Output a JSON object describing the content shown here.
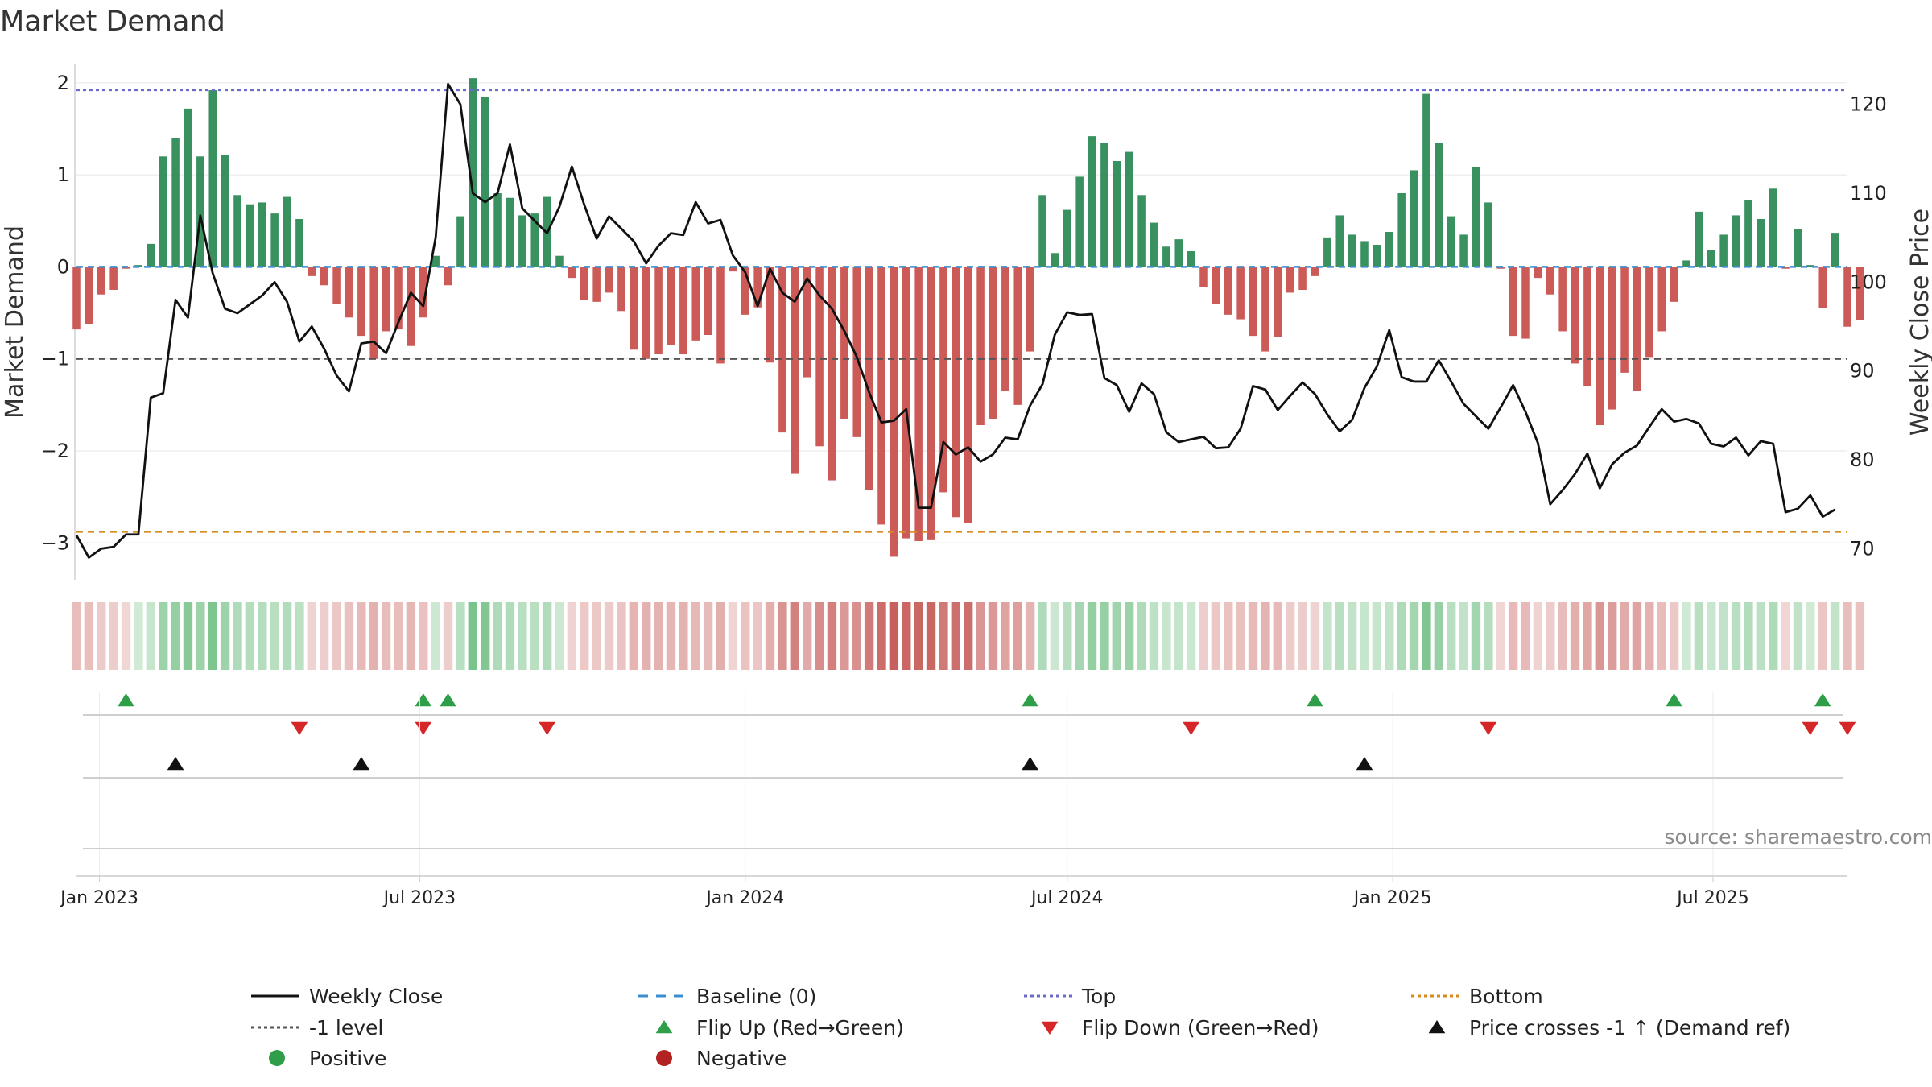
{
  "chart_data": {
    "type": "bar",
    "title": "Market Demand",
    "ylabel_left": "Market Demand",
    "ylabel_right": "Weekly Close Price",
    "source": "source: sharemaestro.com",
    "left_axis": {
      "ylim": [
        -3.4,
        2.2
      ],
      "ticks": [
        2,
        1,
        0,
        -1,
        -2,
        -3
      ],
      "tick_labels": [
        "2",
        "1",
        "0",
        "−1",
        "−2",
        "−3"
      ]
    },
    "right_axis": {
      "ylim": [
        66.5,
        124.5
      ],
      "ticks": [
        120,
        110,
        100,
        90,
        80,
        70
      ],
      "tick_labels": [
        "120",
        "110",
        "100",
        "90",
        "80",
        "70"
      ]
    },
    "x_range": [
      "2022-12-19",
      "2025-09-15"
    ],
    "x_ticks": [
      {
        "date": "2023-01-01",
        "label": "Jan 2023"
      },
      {
        "date": "2023-07-01",
        "label": "Jul 2023"
      },
      {
        "date": "2024-01-01",
        "label": "Jan 2024"
      },
      {
        "date": "2024-07-01",
        "label": "Jul 2024"
      },
      {
        "date": "2025-01-01",
        "label": "Jan 2025"
      },
      {
        "date": "2025-07-01",
        "label": "Jul 2025"
      }
    ],
    "start_date": "2022-12-19",
    "week_step_days": 7,
    "demand": [
      -0.68,
      -0.62,
      -0.3,
      -0.25,
      -0.02,
      0.02,
      0.25,
      1.2,
      1.4,
      1.72,
      1.2,
      1.92,
      1.22,
      0.78,
      0.68,
      0.7,
      0.58,
      0.76,
      0.52,
      -0.1,
      -0.2,
      -0.4,
      -0.55,
      -0.75,
      -1.0,
      -0.7,
      -0.68,
      -0.86,
      -0.55,
      0.12,
      -0.2,
      0.55,
      2.05,
      1.85,
      0.8,
      0.75,
      0.56,
      0.58,
      0.76,
      0.12,
      -0.12,
      -0.36,
      -0.38,
      -0.28,
      -0.48,
      -0.9,
      -1.0,
      -0.95,
      -0.85,
      -0.95,
      -0.8,
      -0.74,
      -1.05,
      -0.05,
      -0.52,
      -0.44,
      -1.04,
      -1.8,
      -2.25,
      -1.2,
      -1.95,
      -2.32,
      -1.65,
      -1.85,
      -2.42,
      -2.8,
      -3.15,
      -2.95,
      -2.98,
      -2.97,
      -2.45,
      -2.72,
      -2.78,
      -1.72,
      -1.65,
      -1.35,
      -1.5,
      -0.92,
      0.78,
      0.15,
      0.62,
      0.98,
      1.42,
      1.35,
      1.15,
      1.25,
      0.78,
      0.48,
      0.22,
      0.3,
      0.17,
      -0.22,
      -0.4,
      -0.52,
      -0.57,
      -0.75,
      -0.92,
      -0.76,
      -0.28,
      -0.25,
      -0.1,
      0.32,
      0.56,
      0.35,
      0.28,
      0.24,
      0.38,
      0.8,
      1.05,
      1.88,
      1.35,
      0.55,
      0.35,
      1.08,
      0.7,
      -0.02,
      -0.75,
      -0.78,
      -0.12,
      -0.3,
      -0.7,
      -1.05,
      -1.3,
      -1.72,
      -1.55,
      -1.15,
      -1.35,
      -0.98,
      -0.7,
      -0.38,
      0.07,
      0.6,
      0.18,
      0.35,
      0.56,
      0.73,
      0.52,
      0.85,
      -0.02,
      0.41,
      0.02,
      -0.45,
      0.37,
      -0.65,
      -0.58
    ],
    "weekly_close": [
      71.5,
      69,
      70,
      70.2,
      71.6,
      71.6,
      87,
      87.5,
      98,
      96,
      107.5,
      101,
      97,
      96.5,
      97.5,
      98.5,
      100,
      97.8,
      93.3,
      95,
      92.5,
      89.5,
      87.7,
      93.1,
      93.3,
      92,
      95.5,
      98.8,
      97.3,
      105,
      122.3,
      120,
      110,
      109,
      110,
      115.5,
      108.3,
      106.9,
      105.5,
      108.5,
      113,
      108.7,
      104.9,
      107.4,
      106,
      104.6,
      102.1,
      104.1,
      105.5,
      105.3,
      109,
      106.6,
      107,
      103,
      101.1,
      97.3,
      101.5,
      98.8,
      97.8,
      100.4,
      98.5,
      97,
      94.5,
      91.6,
      87.6,
      84.2,
      84.4,
      85.7,
      74.6,
      74.6,
      82,
      80.6,
      81.4,
      79.8,
      80.6,
      82.5,
      82.3,
      86.1,
      88.5,
      94.1,
      96.6,
      96.3,
      96.4,
      89.2,
      88.4,
      85.4,
      88.6,
      87.4,
      83.1,
      82,
      82.3,
      82.6,
      81.3,
      81.4,
      83.5,
      88.3,
      87.9,
      85.6,
      87.2,
      88.7,
      87.4,
      85.1,
      83.2,
      84.5,
      88.1,
      90.5,
      94.6,
      89.3,
      88.8,
      88.8,
      91.2,
      88.8,
      86.3,
      84.9,
      83.5,
      85.9,
      88.4,
      85.4,
      81.9,
      75,
      76.6,
      78.4,
      80.7,
      76.8,
      79.5,
      80.8,
      81.6,
      83.7,
      85.7,
      84.3,
      84.6,
      84.1,
      81.8,
      81.5,
      82.5,
      80.5,
      82.1,
      81.8,
      74.1,
      74.5,
      76,
      73.6,
      74.4
    ],
    "reference_lines": [
      {
        "name": "Top",
        "value": 1.92,
        "color": "#6b6bcc",
        "style": "dotted"
      },
      {
        "name": "-1 level",
        "value": -1,
        "color": "#555555",
        "style": "dashed"
      },
      {
        "name": "Bottom",
        "value": -2.88,
        "color": "#d58b1e",
        "style": "dashed"
      },
      {
        "name": "Baseline (0)",
        "value": 0,
        "color": "#3b8ed1",
        "style": "dashed"
      }
    ],
    "flip_up_weeks": [
      4,
      28,
      30,
      77,
      100,
      129,
      141
    ],
    "flip_down_weeks": [
      18,
      28,
      38,
      90,
      114,
      140,
      143
    ],
    "price_cross_weeks": [
      8,
      23,
      77,
      104
    ],
    "colors": {
      "positive": "#2e8b57",
      "negative": "#c9524f",
      "weekly_close": "#111111",
      "flip_up": "#2e9e48",
      "flip_down": "#d62728",
      "price_cross": "#111111",
      "positive_dot": "#2e9e48",
      "negative_dot": "#b22222",
      "grid": "#e6e6e6"
    },
    "legend": [
      {
        "label": "Weekly Close",
        "kind": "line",
        "color": "#111111"
      },
      {
        "label": "Baseline (0)",
        "kind": "dash",
        "color": "#3b8ed1"
      },
      {
        "label": "Top",
        "kind": "dotted",
        "color": "#6b6bcc"
      },
      {
        "label": "Bottom",
        "kind": "dotted",
        "color": "#d58b1e"
      },
      {
        "label": "-1 level",
        "kind": "dotted",
        "color": "#555555"
      },
      {
        "label": "Flip Up (Red→Green)",
        "kind": "tri-up",
        "color": "#2e9e48"
      },
      {
        "label": "Flip Down (Green→Red)",
        "kind": "tri-down",
        "color": "#d62728"
      },
      {
        "label": "Price crosses -1 ↑ (Demand ref)",
        "kind": "tri-up",
        "color": "#111111"
      },
      {
        "label": "Positive",
        "kind": "dot",
        "color": "#2e9e48"
      },
      {
        "label": "Negative",
        "kind": "dot",
        "color": "#b22222"
      }
    ]
  }
}
